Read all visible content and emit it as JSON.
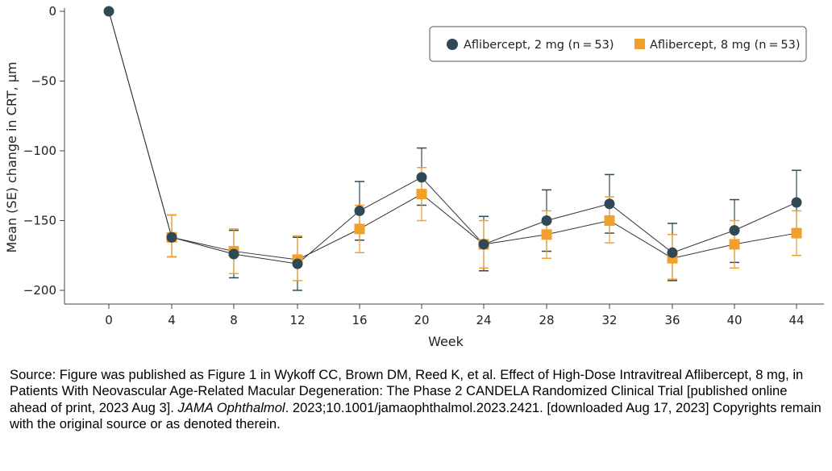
{
  "chart_data": {
    "type": "line",
    "xlabel": "Week",
    "ylabel": "Mean (SE) change in CRT, µm",
    "x": [
      0,
      4,
      8,
      12,
      16,
      20,
      24,
      28,
      32,
      36,
      40,
      44
    ],
    "x_ticks": [
      "0",
      "4",
      "8",
      "12",
      "16",
      "20",
      "24",
      "28",
      "32",
      "36",
      "40",
      "44"
    ],
    "ylim": [
      -210,
      0
    ],
    "y_ticks": [
      0,
      -50,
      -100,
      -150,
      -200
    ],
    "y_tick_labels": [
      "0",
      "−50",
      "−100",
      "−150",
      "−200"
    ],
    "legend_position": "top-right",
    "grid": false,
    "series": [
      {
        "name": "Aflibercept, 2 mg (n = 53)",
        "marker": "circle",
        "color": "#2f4a56",
        "values": [
          0,
          -162,
          -174,
          -181,
          -143,
          -119,
          -167,
          -150,
          -138,
          -173,
          -157,
          -137
        ],
        "se_low": [
          null,
          -176,
          -191,
          -200,
          -164,
          -139,
          -186,
          -172,
          -159,
          -193,
          -180,
          -160
        ],
        "se_high": [
          null,
          -146,
          -157,
          -162,
          -122,
          -98,
          -147,
          -128,
          -117,
          -152,
          -135,
          -114
        ]
      },
      {
        "name": "Aflibercept, 8 mg (n = 53)",
        "marker": "square",
        "color": "#f0a02c",
        "values": [
          0,
          -162,
          -172,
          -178,
          -156,
          -131,
          -167,
          -160,
          -150,
          -177,
          -167,
          -159
        ],
        "se_low": [
          null,
          -176,
          -188,
          -193,
          -173,
          -150,
          -184,
          -177,
          -166,
          -192,
          -184,
          -175
        ],
        "se_high": [
          null,
          -146,
          -156,
          -161,
          -139,
          -112,
          -150,
          -143,
          -133,
          -160,
          -150,
          -143
        ]
      }
    ]
  },
  "caption": {
    "part1": "Source: Figure was published as Figure 1 in  Wykoff CC, Brown DM, Reed K, et al. Effect of High-Dose Intravitreal Aflibercept, 8 mg, in Patients With Neovascular Age-Related Macular Degeneration: The Phase 2 CANDELA Randomized Clinical Trial [published online ahead of print, 2023 Aug 3]. ",
    "journal": "JAMA Ophthalmol",
    "part2": ". 2023;10.1001/jamaophthalmol.2023.2421. [downloaded Aug 17, 2023] Copyrights remain with the original source or as denoted therein."
  }
}
